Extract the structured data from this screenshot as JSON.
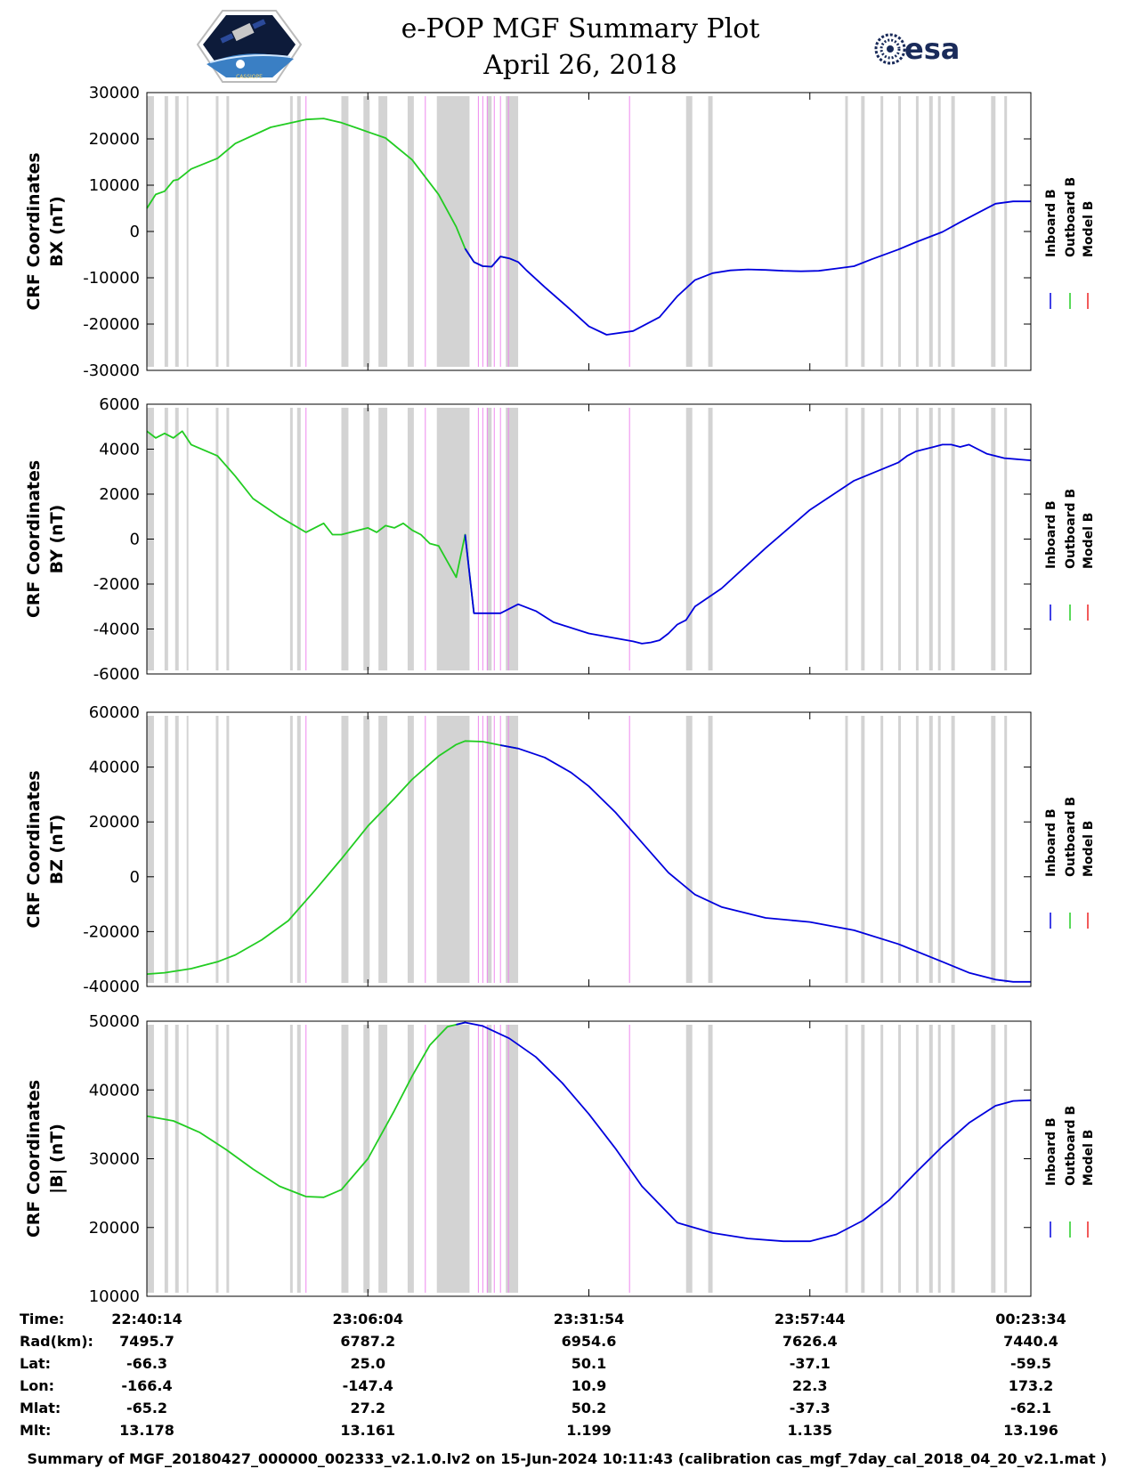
{
  "header": {
    "title_line1": "e-POP MGF Summary Plot",
    "title_line2": "April 26, 2018",
    "left_logo_icon": "cassiope-satellite-logo",
    "left_logo_caption": "CASSIOPE",
    "right_logo_icon": "esa-logo",
    "right_logo_text": "esa"
  },
  "colors": {
    "inboard": "#0000dd",
    "outboard": "#22cc22",
    "model": "#ee2222",
    "gap_shade": "#d3d3d3",
    "event_line": "#ee88ee"
  },
  "legend": {
    "labels": [
      "Inboard B",
      "Outboard B",
      "Model B"
    ]
  },
  "chart_data": [
    {
      "type": "line",
      "id": "bx",
      "ylabel_line1": "CRF Coordinates",
      "ylabel_line2": "BX (nT)",
      "ylim": [
        -30000,
        30000
      ],
      "yticks": [
        -30000,
        -20000,
        -10000,
        0,
        10000,
        20000,
        30000
      ],
      "xlim": [
        0,
        1
      ],
      "x": [
        0,
        0.01,
        0.02,
        0.03,
        0.035,
        0.05,
        0.08,
        0.1,
        0.14,
        0.18,
        0.2,
        0.22,
        0.24,
        0.25,
        0.27,
        0.3,
        0.33,
        0.35,
        0.36,
        0.37,
        0.38,
        0.39,
        0.4,
        0.41,
        0.42,
        0.43,
        0.45,
        0.48,
        0.5,
        0.52,
        0.55,
        0.58,
        0.6,
        0.62,
        0.64,
        0.66,
        0.68,
        0.7,
        0.72,
        0.74,
        0.76,
        0.78,
        0.8,
        0.82,
        0.85,
        0.87,
        0.9,
        0.92,
        0.94,
        0.96,
        0.98,
        1.0
      ],
      "series": [
        {
          "name": "Outboard B",
          "color_key": "outboard",
          "x_end": 0.415,
          "values": [
            5000,
            8000,
            8700,
            11000,
            11200,
            13500,
            15800,
            19000,
            22500,
            24200,
            24400,
            23500,
            22200,
            21500,
            20200,
            15500,
            8000,
            1000,
            -3700,
            -6600,
            -7500,
            -7600,
            -5400,
            -5800,
            -6600,
            -8500,
            -12000,
            -17000,
            -20500,
            -22300,
            -21500,
            -18500,
            -14000,
            -10500,
            -9000,
            -8400,
            -8200,
            -8300,
            -8500,
            -8600,
            -8500,
            -8000,
            -7500,
            -6000,
            -3900,
            -2300,
            -100,
            2000,
            4000,
            6000,
            6500,
            6500
          ]
        },
        {
          "name": "Inboard B",
          "color_key": "inboard",
          "x_start": 0.36,
          "values": [
            5000,
            8000,
            8700,
            11000,
            11200,
            13500,
            15800,
            19000,
            22500,
            24200,
            24400,
            23500,
            22200,
            21500,
            20200,
            15500,
            8000,
            1000,
            -3700,
            -6600,
            -7500,
            -7600,
            -5400,
            -5800,
            -6600,
            -8500,
            -12000,
            -17000,
            -20500,
            -22300,
            -21500,
            -18500,
            -14000,
            -10500,
            -9000,
            -8400,
            -8200,
            -8300,
            -8500,
            -8600,
            -8500,
            -8000,
            -7500,
            -6000,
            -3900,
            -2300,
            -100,
            2000,
            4000,
            6000,
            6500,
            6500
          ]
        }
      ]
    },
    {
      "type": "line",
      "id": "by",
      "ylabel_line1": "CRF Coordinates",
      "ylabel_line2": "BY (nT)",
      "ylim": [
        -6000,
        6000
      ],
      "yticks": [
        -6000,
        -4000,
        -2000,
        0,
        2000,
        4000,
        6000
      ],
      "xlim": [
        0,
        1
      ],
      "x": [
        0,
        0.01,
        0.02,
        0.03,
        0.04,
        0.05,
        0.08,
        0.1,
        0.12,
        0.15,
        0.18,
        0.2,
        0.21,
        0.22,
        0.25,
        0.26,
        0.27,
        0.28,
        0.29,
        0.3,
        0.31,
        0.32,
        0.33,
        0.34,
        0.35,
        0.36,
        0.37,
        0.38,
        0.4,
        0.42,
        0.44,
        0.46,
        0.5,
        0.55,
        0.56,
        0.57,
        0.58,
        0.59,
        0.6,
        0.61,
        0.62,
        0.65,
        0.7,
        0.75,
        0.8,
        0.85,
        0.86,
        0.87,
        0.88,
        0.89,
        0.9,
        0.91,
        0.92,
        0.93,
        0.94,
        0.95,
        0.97,
        1.0
      ],
      "series": [
        {
          "name": "Outboard B",
          "color_key": "outboard",
          "x_end": 0.37,
          "values": [
            4800,
            4500,
            4700,
            4500,
            4800,
            4200,
            3700,
            2800,
            1800,
            1000,
            300,
            700,
            200,
            200,
            500,
            300,
            600,
            500,
            700,
            400,
            200,
            -200,
            -300,
            -1000,
            -1700,
            200,
            -3300,
            -3300,
            -3300,
            -2900,
            -3200,
            -3700,
            -4200,
            -4550,
            -4650,
            -4600,
            -4500,
            -4200,
            -3800,
            -3600,
            -3000,
            -2200,
            -400,
            1300,
            2600,
            3400,
            3700,
            3900,
            4000,
            4100,
            4200,
            4200,
            4100,
            4200,
            4000,
            3800,
            3600,
            3500
          ]
        },
        {
          "name": "Inboard B",
          "color_key": "inboard",
          "x_start": 0.36,
          "values": [
            4800,
            4500,
            4700,
            4500,
            4800,
            4200,
            3700,
            2800,
            1800,
            1000,
            300,
            700,
            200,
            200,
            500,
            300,
            600,
            500,
            700,
            400,
            200,
            -200,
            -300,
            -1000,
            -1700,
            200,
            -3300,
            -3300,
            -3300,
            -2900,
            -3200,
            -3700,
            -4200,
            -4550,
            -4650,
            -4600,
            -4500,
            -4200,
            -3800,
            -3600,
            -3000,
            -2200,
            -400,
            1300,
            2600,
            3400,
            3700,
            3900,
            4000,
            4100,
            4200,
            4200,
            4100,
            4200,
            4000,
            3800,
            3600,
            3500
          ]
        }
      ]
    },
    {
      "type": "line",
      "id": "bz",
      "ylabel_line1": "CRF Coordinates",
      "ylabel_line2": "BZ (nT)",
      "ylim": [
        -40000,
        60000
      ],
      "yticks": [
        -40000,
        -20000,
        0,
        20000,
        40000,
        60000
      ],
      "xlim": [
        0,
        1
      ],
      "x": [
        0,
        0.02,
        0.05,
        0.08,
        0.1,
        0.13,
        0.16,
        0.19,
        0.22,
        0.25,
        0.28,
        0.3,
        0.33,
        0.35,
        0.36,
        0.38,
        0.4,
        0.42,
        0.45,
        0.48,
        0.5,
        0.53,
        0.56,
        0.59,
        0.62,
        0.65,
        0.7,
        0.75,
        0.8,
        0.85,
        0.9,
        0.93,
        0.96,
        0.98,
        1.0
      ],
      "series": [
        {
          "name": "Outboard B",
          "color_key": "outboard",
          "x_end": 0.42,
          "values": [
            -35500,
            -35000,
            -33500,
            -31000,
            -28500,
            -23000,
            -16000,
            -5000,
            6500,
            18500,
            28500,
            35500,
            44000,
            48200,
            49500,
            49300,
            48000,
            46800,
            43500,
            38000,
            33000,
            23500,
            12500,
            1500,
            -6500,
            -11000,
            -15000,
            -16500,
            -19500,
            -24500,
            -31000,
            -35000,
            -37500,
            -38300,
            -38300
          ]
        },
        {
          "name": "Inboard B",
          "color_key": "inboard",
          "x_start": 0.4,
          "values": [
            -35500,
            -35000,
            -33500,
            -31000,
            -28500,
            -23000,
            -16000,
            -5000,
            6500,
            18500,
            28500,
            35500,
            44000,
            48200,
            49500,
            49300,
            48000,
            46800,
            43500,
            38000,
            33000,
            23500,
            12500,
            1500,
            -6500,
            -11000,
            -15000,
            -16500,
            -19500,
            -24500,
            -31000,
            -35000,
            -37500,
            -38300,
            -38300
          ]
        }
      ]
    },
    {
      "type": "line",
      "id": "bmag",
      "ylabel_line1": "CRF Coordinates",
      "ylabel_line2": "|B| (nT)",
      "ylim": [
        10000,
        50000
      ],
      "yticks": [
        10000,
        20000,
        30000,
        40000,
        50000
      ],
      "xlim": [
        0,
        1
      ],
      "x": [
        0,
        0.03,
        0.06,
        0.09,
        0.12,
        0.15,
        0.18,
        0.2,
        0.22,
        0.25,
        0.28,
        0.3,
        0.32,
        0.34,
        0.36,
        0.38,
        0.41,
        0.44,
        0.47,
        0.5,
        0.53,
        0.56,
        0.6,
        0.64,
        0.68,
        0.72,
        0.75,
        0.78,
        0.81,
        0.84,
        0.87,
        0.9,
        0.93,
        0.96,
        0.98,
        1.0
      ],
      "series": [
        {
          "name": "Outboard B",
          "color_key": "outboard",
          "x_end": 0.36,
          "values": [
            36200,
            35500,
            33800,
            31300,
            28500,
            26000,
            24500,
            24400,
            25500,
            30000,
            37000,
            42000,
            46500,
            49200,
            49800,
            49300,
            47500,
            44800,
            41000,
            36500,
            31500,
            26000,
            20700,
            19200,
            18400,
            18000,
            18000,
            19000,
            21000,
            24000,
            28000,
            31800,
            35200,
            37700,
            38400,
            38500
          ]
        },
        {
          "name": "Inboard B",
          "color_key": "inboard",
          "x_start": 0.35,
          "values": [
            36200,
            35500,
            33800,
            31300,
            28500,
            26000,
            24500,
            24400,
            25500,
            30000,
            37000,
            42000,
            46500,
            49200,
            49800,
            49300,
            47500,
            44800,
            41000,
            36500,
            31500,
            26000,
            20700,
            19200,
            18400,
            18000,
            18000,
            19000,
            21000,
            24000,
            28000,
            31800,
            35200,
            37700,
            38400,
            38500
          ]
        }
      ]
    }
  ],
  "gap_bands": [
    [
      0.0,
      0.008
    ],
    [
      0.02,
      0.024
    ],
    [
      0.032,
      0.036
    ],
    [
      0.045,
      0.047
    ],
    [
      0.078,
      0.081
    ],
    [
      0.09,
      0.093
    ],
    [
      0.162,
      0.165
    ],
    [
      0.17,
      0.174
    ],
    [
      0.22,
      0.228
    ],
    [
      0.245,
      0.252
    ],
    [
      0.262,
      0.272
    ],
    [
      0.295,
      0.302
    ],
    [
      0.328,
      0.365
    ],
    [
      0.385,
      0.39
    ],
    [
      0.406,
      0.42
    ],
    [
      0.61,
      0.617
    ],
    [
      0.635,
      0.64
    ],
    [
      0.79,
      0.793
    ],
    [
      0.808,
      0.812
    ],
    [
      0.83,
      0.833
    ],
    [
      0.85,
      0.853
    ],
    [
      0.87,
      0.873
    ],
    [
      0.885,
      0.889
    ],
    [
      0.895,
      0.898
    ],
    [
      0.91,
      0.914
    ],
    [
      0.955,
      0.96
    ],
    [
      0.97,
      0.973
    ]
  ],
  "event_lines": [
    0.18,
    0.315,
    0.375,
    0.38,
    0.385,
    0.393,
    0.4,
    0.409,
    0.546
  ],
  "axis_time_labels": [
    {
      "time": "22:40:14",
      "rad": "7495.7",
      "lat": "-66.3",
      "lon": "-166.4",
      "mlat": "-65.2",
      "mlt": "13.178"
    },
    {
      "time": "23:06:04",
      "rad": "6787.2",
      "lat": "25.0",
      "lon": "-147.4",
      "mlat": "27.2",
      "mlt": "13.161"
    },
    {
      "time": "23:31:54",
      "rad": "6954.6",
      "lat": "50.1",
      "lon": "10.9",
      "mlat": "50.2",
      "mlt": "1.199"
    },
    {
      "time": "23:57:44",
      "rad": "7626.4",
      "lat": "-37.1",
      "lon": "22.3",
      "mlat": "-37.3",
      "mlt": "1.135"
    },
    {
      "time": "00:23:34",
      "rad": "7440.4",
      "lat": "-59.5",
      "lon": "173.2",
      "mlat": "-62.1",
      "mlt": "13.196"
    }
  ],
  "row_labels": {
    "time": "Time:",
    "rad": "Rad(km):",
    "lat": "Lat:",
    "lon": "Lon:",
    "mlat": "Mlat:",
    "mlt": "Mlt:"
  },
  "footer": "Summary of MGF_20180427_000000_002333_v2.1.0.lv2 on 15-Jun-2024 10:11:43 (calibration cas_mgf_7day_cal_2018_04_20_v2.1.mat )"
}
